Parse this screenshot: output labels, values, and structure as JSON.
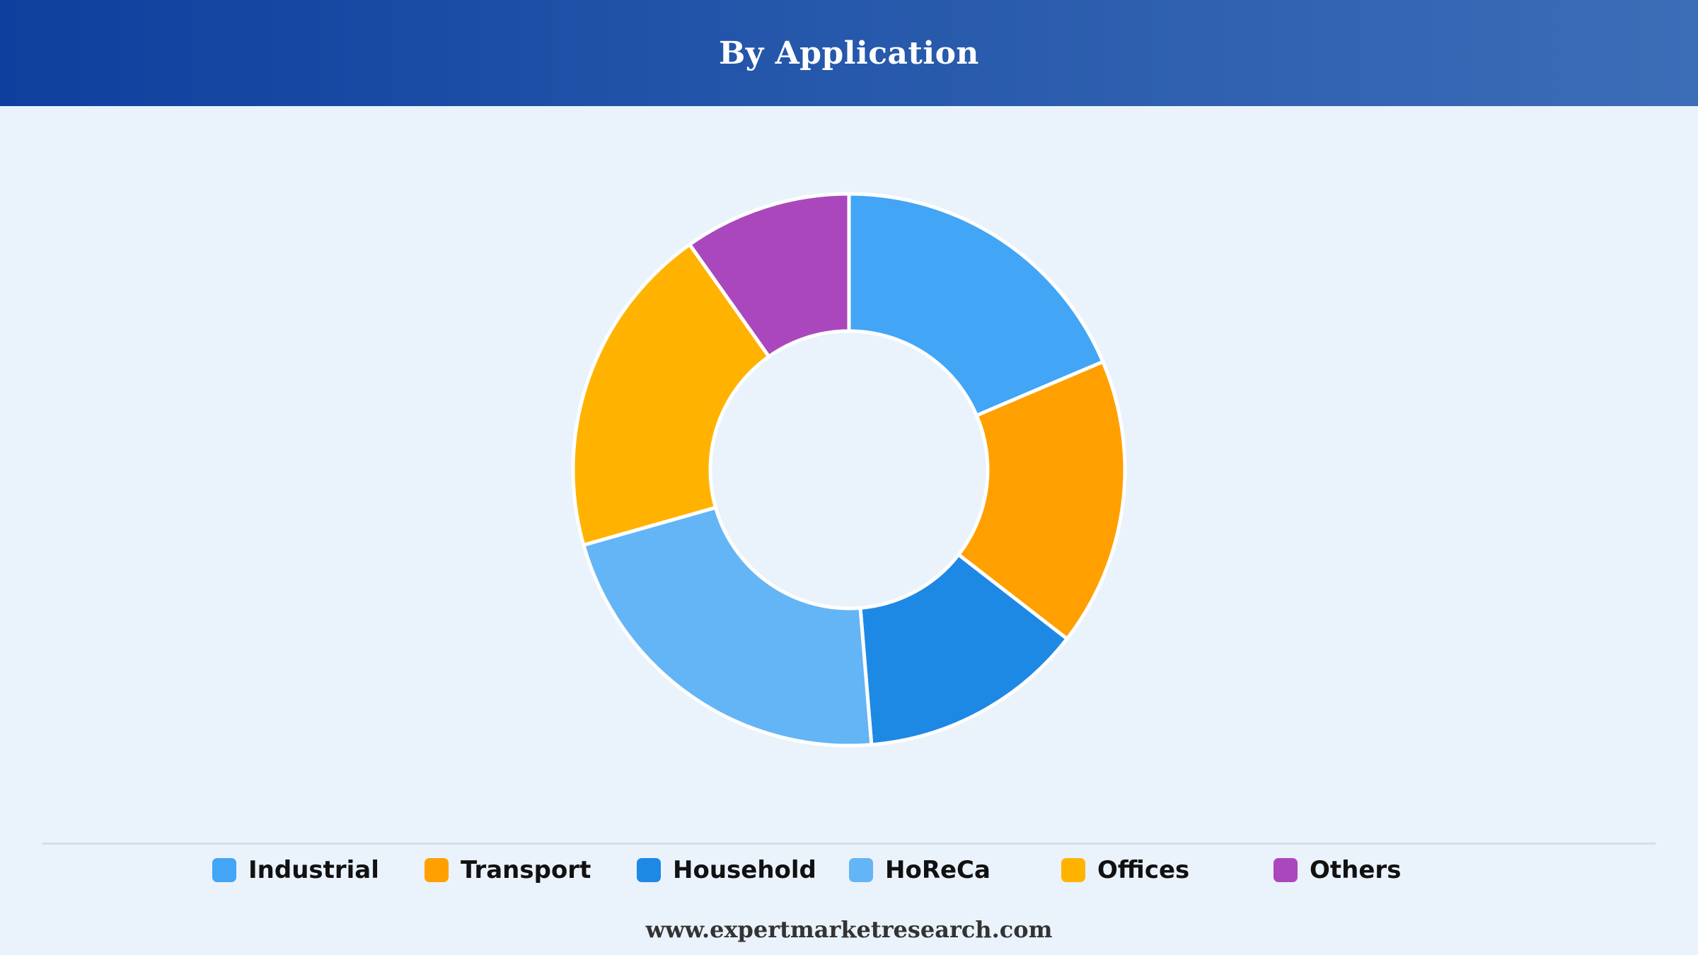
{
  "header": {
    "title": "By Application"
  },
  "chart_data": {
    "type": "pie",
    "variant": "donut",
    "title": "By Application",
    "unit": "percent",
    "categories": [
      "Industrial",
      "Transport",
      "Household",
      "HoReCa",
      "Offices",
      "Others"
    ],
    "values": [
      18.6,
      16.9,
      13.2,
      21.9,
      19.6,
      9.8
    ],
    "colors": [
      "#42a5f5",
      "#ffa000",
      "#1e88e5",
      "#64b5f6",
      "#ffb300",
      "#ab47bc"
    ],
    "legend_position": "bottom"
  },
  "legend": {
    "items": [
      {
        "label": "Industrial",
        "color": "#42a5f5"
      },
      {
        "label": "Transport",
        "color": "#ffa000"
      },
      {
        "label": "Household",
        "color": "#1e88e5"
      },
      {
        "label": "HoReCa",
        "color": "#64b5f6"
      },
      {
        "label": "Offices",
        "color": "#ffb300"
      },
      {
        "label": "Others",
        "color": "#ab47bc"
      }
    ]
  },
  "footer": {
    "website": "www.expertmarketresearch.com"
  }
}
